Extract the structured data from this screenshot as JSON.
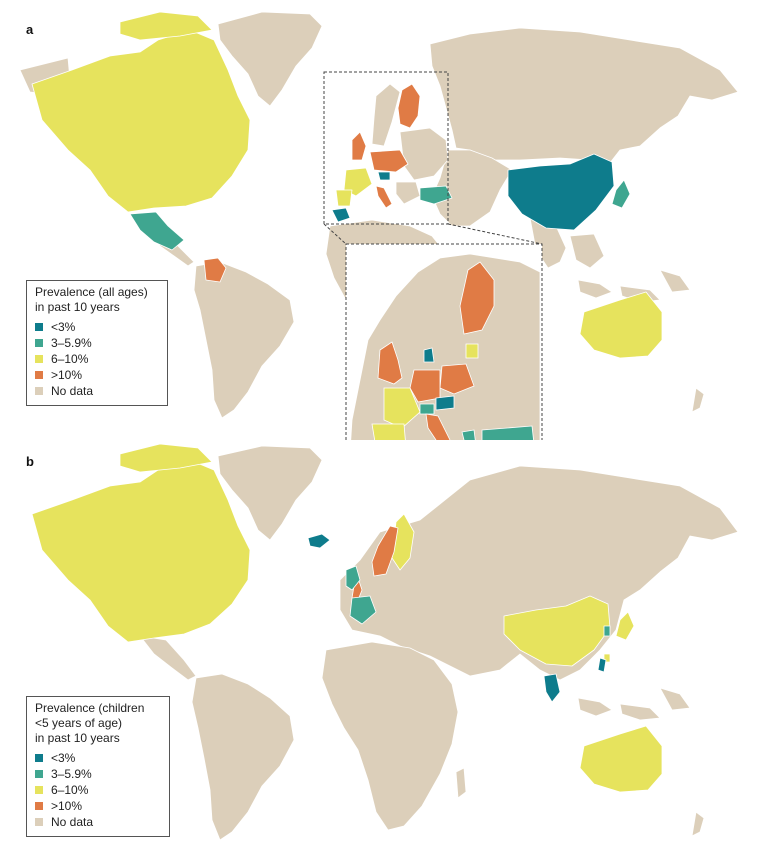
{
  "colors": {
    "lt3": "#0e7c8c",
    "r3_5_9": "#3fa690",
    "r6_10": "#e6e35d",
    "gt10": "#e07b45",
    "nodata": "#dccfba",
    "border": "#ffffff"
  },
  "panel_a": {
    "letter": "a",
    "legend": {
      "title_line1": "Prevalence (all ages)",
      "title_line2": "in past 10 years",
      "items": [
        "<3%",
        "3–5.9%",
        "6–10%",
        ">10%",
        "No data"
      ]
    }
  },
  "panel_b": {
    "letter": "b",
    "legend": {
      "title_line1": "Prevalence (children",
      "title_line2": "<5 years of age)",
      "title_line3": "in past 10 years",
      "items": [
        "<3%",
        "3–5.9%",
        "6–10%",
        ">10%",
        "No data"
      ]
    }
  }
}
